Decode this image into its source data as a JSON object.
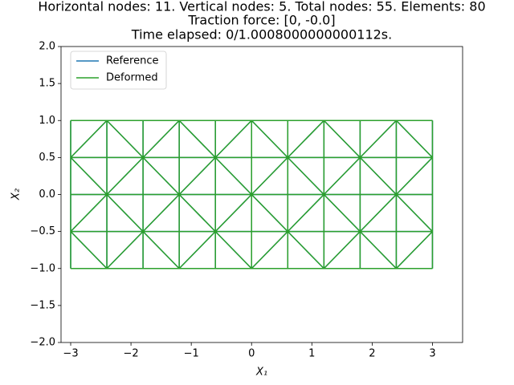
{
  "chart_data": {
    "type": "line",
    "title": [
      "Horizontal nodes: 11. Vertical nodes: 5. Total nodes: 55. Elements: 80",
      "Traction force: [0, -0.0]",
      "Time elapsed: 0/1.0008000000000112s."
    ],
    "xlabel": "X₁",
    "ylabel": "X₂",
    "xlim": [
      -3.16,
      3.5
    ],
    "xticks": [
      {
        "value": -3,
        "label": "−3"
      },
      {
        "value": -2,
        "label": "−2"
      },
      {
        "value": -1,
        "label": "−1"
      },
      0,
      1,
      2,
      3
    ],
    "ylim": [
      -2,
      2
    ],
    "yticks": [
      {
        "value": -2,
        "label": "−2.0"
      },
      {
        "value": -1.5,
        "label": "−1.5"
      },
      {
        "value": -1,
        "label": "−1.0"
      },
      {
        "value": -0.5,
        "label": "−0.5"
      },
      {
        "value": 0,
        "label": "0.0"
      },
      0.5,
      {
        "value": 1,
        "label": "1.0"
      },
      1.5,
      {
        "value": 2,
        "label": "2.0"
      }
    ],
    "legend": "upper left",
    "series": [
      {
        "name": "Reference",
        "color": "#1f77b4",
        "x": [
          -3,
          -2.4,
          -1.8,
          -1.2,
          -0.6,
          0,
          0.6,
          1.2,
          1.8,
          2.4,
          3,
          null,
          -3,
          -2.4,
          -1.8,
          -1.2,
          -0.6,
          0,
          0.6,
          1.2,
          1.8,
          2.4,
          3,
          null,
          -3,
          -2.4,
          -1.8,
          -1.2,
          -0.6,
          0,
          0.6,
          1.2,
          1.8,
          2.4,
          3,
          null,
          -3,
          -2.4,
          -1.8,
          -1.2,
          -0.6,
          0,
          0.6,
          1.2,
          1.8,
          2.4,
          3,
          null,
          -3,
          3,
          null,
          -3,
          3,
          null,
          -3,
          3,
          null,
          -3,
          3,
          null,
          -3,
          3,
          null,
          -3,
          -3,
          null,
          -2.4,
          -2.4,
          null,
          -1.8,
          -1.8,
          null,
          -1.2,
          -1.2,
          null,
          -0.6,
          -0.6,
          null,
          0,
          0,
          null,
          0.6,
          0.6,
          null,
          1.2,
          1.2,
          null,
          1.8,
          1.8,
          null,
          2.4,
          2.4,
          null,
          3,
          3
        ],
        "values": [
          0.5,
          1,
          0.5,
          1,
          0.5,
          1,
          0.5,
          1,
          0.5,
          1,
          0.5,
          null,
          0.5,
          0,
          0.5,
          0,
          0.5,
          0,
          0.5,
          0,
          0.5,
          0,
          0.5,
          null,
          -0.5,
          0,
          -0.5,
          0,
          -0.5,
          0,
          -0.5,
          0,
          -0.5,
          0,
          -0.5,
          null,
          -0.5,
          -1,
          -0.5,
          -1,
          -0.5,
          -1,
          -0.5,
          -1,
          -0.5,
          -1,
          -0.5,
          null,
          1,
          1,
          null,
          0.5,
          0.5,
          null,
          0,
          0,
          null,
          -0.5,
          -0.5,
          null,
          -1,
          -1,
          null,
          -1,
          1,
          null,
          -1,
          1,
          null,
          -1,
          1,
          null,
          -1,
          1,
          null,
          -1,
          1,
          null,
          -1,
          1,
          null,
          -1,
          1,
          null,
          -1,
          1,
          null,
          -1,
          1,
          null,
          -1,
          1,
          null,
          -1,
          1
        ]
      },
      {
        "name": "Deformed",
        "color": "#2ca02c",
        "x": [
          -3,
          -2.4,
          -1.8,
          -1.2,
          -0.6,
          0,
          0.6,
          1.2,
          1.8,
          2.4,
          3,
          null,
          -3,
          -2.4,
          -1.8,
          -1.2,
          -0.6,
          0,
          0.6,
          1.2,
          1.8,
          2.4,
          3,
          null,
          -3,
          -2.4,
          -1.8,
          -1.2,
          -0.6,
          0,
          0.6,
          1.2,
          1.8,
          2.4,
          3,
          null,
          -3,
          -2.4,
          -1.8,
          -1.2,
          -0.6,
          0,
          0.6,
          1.2,
          1.8,
          2.4,
          3,
          null,
          -3,
          3,
          null,
          -3,
          3,
          null,
          -3,
          3,
          null,
          -3,
          3,
          null,
          -3,
          3,
          null,
          -3,
          -3,
          null,
          -2.4,
          -2.4,
          null,
          -1.8,
          -1.8,
          null,
          -1.2,
          -1.2,
          null,
          -0.6,
          -0.6,
          null,
          0,
          0,
          null,
          0.6,
          0.6,
          null,
          1.2,
          1.2,
          null,
          1.8,
          1.8,
          null,
          2.4,
          2.4,
          null,
          3,
          3
        ],
        "values": [
          0.5,
          1,
          0.5,
          1,
          0.5,
          1,
          0.5,
          1,
          0.5,
          1,
          0.5,
          null,
          0.5,
          0,
          0.5,
          0,
          0.5,
          0,
          0.5,
          0,
          0.5,
          0,
          0.5,
          null,
          -0.5,
          0,
          -0.5,
          0,
          -0.5,
          0,
          -0.5,
          0,
          -0.5,
          0,
          -0.5,
          null,
          -0.5,
          -1,
          -0.5,
          -1,
          -0.5,
          -1,
          -0.5,
          -1,
          -0.5,
          -1,
          -0.5,
          null,
          1,
          1,
          null,
          0.5,
          0.5,
          null,
          0,
          0,
          null,
          -0.5,
          -0.5,
          null,
          -1,
          -1,
          null,
          -1,
          1,
          null,
          -1,
          1,
          null,
          -1,
          1,
          null,
          -1,
          1,
          null,
          -1,
          1,
          null,
          -1,
          1,
          null,
          -1,
          1,
          null,
          -1,
          1,
          null,
          -1,
          1,
          null,
          -1,
          1,
          null,
          -1,
          1
        ]
      }
    ]
  }
}
